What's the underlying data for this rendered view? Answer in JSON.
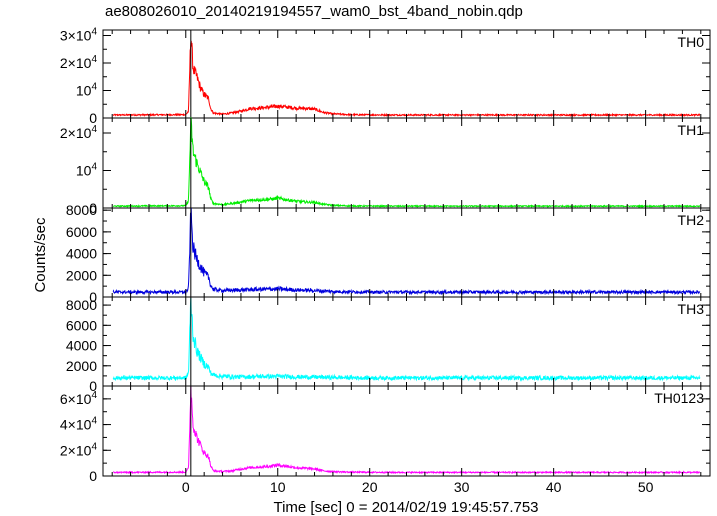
{
  "title": "ae808026010_20140219194557_wam0_bst_4band_nobin.qdp",
  "xlabel": "Time [sec] 0 = 2014/02/19 19:45:57.753",
  "ylabel": "Counts/sec",
  "chart_data": {
    "type": "line",
    "title": "ae808026010_20140219194557_wam0_bst_4band_nobin.qdp",
    "xlabel": "Time [sec] 0 = 2014/02/19 19:45:57.753",
    "ylabel": "Counts/sec",
    "xlim": [
      -9,
      57
    ],
    "x_ticks": [
      "0",
      "10",
      "20",
      "30",
      "40",
      "50"
    ],
    "x_data_range": [
      -7.9,
      55.9
    ],
    "trigger_time": 0.55,
    "grid": false,
    "series": [
      {
        "name": "TH0",
        "color": "#ff0000",
        "ylim": [
          0,
          32000
        ],
        "ytick_labels": [
          {
            "value": 0,
            "label": "0",
            "sup": ""
          },
          {
            "value": 10000,
            "label": "10",
            "sup": "4"
          },
          {
            "value": 20000,
            "label": "2×10",
            "sup": "4"
          },
          {
            "value": 30000,
            "label": "3×10",
            "sup": "4"
          }
        ],
        "baseline": 1100,
        "points": [
          [
            -7.9,
            1100
          ],
          [
            0,
            1200
          ],
          [
            0.3,
            2500
          ],
          [
            0.55,
            31000
          ],
          [
            0.8,
            18000
          ],
          [
            1.2,
            15000
          ],
          [
            1.6,
            11000
          ],
          [
            2.0,
            8500
          ],
          [
            2.5,
            7000
          ],
          [
            2.7,
            3500
          ],
          [
            3.0,
            1800
          ],
          [
            4.0,
            1400
          ],
          [
            5.0,
            1800
          ],
          [
            6.0,
            2500
          ],
          [
            7.0,
            3500
          ],
          [
            8.0,
            3600
          ],
          [
            9.0,
            3900
          ],
          [
            10.0,
            4300
          ],
          [
            11.0,
            4000
          ],
          [
            12.0,
            3600
          ],
          [
            13.0,
            3500
          ],
          [
            14.0,
            3200
          ],
          [
            15.0,
            2000
          ],
          [
            16.0,
            1500
          ],
          [
            18.0,
            1200
          ],
          [
            22.0,
            1100
          ],
          [
            55.9,
            1100
          ]
        ]
      },
      {
        "name": "TH1",
        "color": "#00ee00",
        "ylim": [
          0,
          24000
        ],
        "ytick_labels": [
          {
            "value": 0,
            "label": "0",
            "sup": ""
          },
          {
            "value": 10000,
            "label": "10",
            "sup": "4"
          },
          {
            "value": 20000,
            "label": "2×10",
            "sup": "4"
          }
        ],
        "baseline": 500,
        "points": [
          [
            -7.9,
            500
          ],
          [
            0,
            600
          ],
          [
            0.3,
            2000
          ],
          [
            0.55,
            23000
          ],
          [
            0.8,
            15000
          ],
          [
            1.2,
            12000
          ],
          [
            1.6,
            9500
          ],
          [
            2.0,
            7000
          ],
          [
            2.5,
            5500
          ],
          [
            2.7,
            2500
          ],
          [
            3.0,
            1200
          ],
          [
            4.0,
            900
          ],
          [
            5.0,
            1200
          ],
          [
            6.0,
            1600
          ],
          [
            7.0,
            2000
          ],
          [
            8.0,
            2200
          ],
          [
            9.0,
            2300
          ],
          [
            10.0,
            2600
          ],
          [
            11.0,
            2200
          ],
          [
            12.0,
            1800
          ],
          [
            13.0,
            1600
          ],
          [
            14.0,
            1500
          ],
          [
            15.0,
            1000
          ],
          [
            16.0,
            700
          ],
          [
            18.0,
            550
          ],
          [
            22.0,
            500
          ],
          [
            55.9,
            500
          ]
        ]
      },
      {
        "name": "TH2",
        "color": "#0000dd",
        "ylim": [
          0,
          8200
        ],
        "ytick_labels": [
          {
            "value": 0,
            "label": "0",
            "sup": ""
          },
          {
            "value": 2000,
            "label": "2000",
            "sup": ""
          },
          {
            "value": 4000,
            "label": "4000",
            "sup": ""
          },
          {
            "value": 6000,
            "label": "6000",
            "sup": ""
          },
          {
            "value": 8000,
            "label": "8000",
            "sup": ""
          }
        ],
        "baseline": 450,
        "points": [
          [
            -7.9,
            450
          ],
          [
            0,
            450
          ],
          [
            0.3,
            800
          ],
          [
            0.55,
            7800
          ],
          [
            0.8,
            4500
          ],
          [
            1.2,
            3500
          ],
          [
            1.6,
            2800
          ],
          [
            2.0,
            2200
          ],
          [
            2.5,
            1800
          ],
          [
            2.7,
            1100
          ],
          [
            3.0,
            700
          ],
          [
            4.0,
            600
          ],
          [
            6.0,
            650
          ],
          [
            8.0,
            700
          ],
          [
            10.0,
            750
          ],
          [
            12.0,
            650
          ],
          [
            14.0,
            600
          ],
          [
            16.0,
            500
          ],
          [
            20.0,
            450
          ],
          [
            55.9,
            450
          ]
        ]
      },
      {
        "name": "TH3",
        "color": "#00ffff",
        "ylim": [
          0,
          8800
        ],
        "ytick_labels": [
          {
            "value": 0,
            "label": "0",
            "sup": ""
          },
          {
            "value": 2000,
            "label": "2000",
            "sup": ""
          },
          {
            "value": 4000,
            "label": "4000",
            "sup": ""
          },
          {
            "value": 6000,
            "label": "6000",
            "sup": ""
          },
          {
            "value": 8000,
            "label": "8000",
            "sup": ""
          }
        ],
        "baseline": 800,
        "points": [
          [
            -7.9,
            800
          ],
          [
            0,
            800
          ],
          [
            0.3,
            1300
          ],
          [
            0.55,
            8500
          ],
          [
            0.8,
            5000
          ],
          [
            1.2,
            3500
          ],
          [
            1.6,
            2800
          ],
          [
            2.0,
            2200
          ],
          [
            2.5,
            1800
          ],
          [
            2.7,
            1300
          ],
          [
            3.0,
            1100
          ],
          [
            4.0,
            950
          ],
          [
            6.0,
            900
          ],
          [
            8.0,
            950
          ],
          [
            10.0,
            950
          ],
          [
            12.0,
            900
          ],
          [
            14.0,
            880
          ],
          [
            16.0,
            850
          ],
          [
            20.0,
            800
          ],
          [
            55.9,
            800
          ]
        ]
      },
      {
        "name": "TH0123",
        "color": "#ff00ff",
        "ylim": [
          0,
          70000
        ],
        "ytick_labels": [
          {
            "value": 0,
            "label": "0",
            "sup": ""
          },
          {
            "value": 20000,
            "label": "2×10",
            "sup": "4"
          },
          {
            "value": 40000,
            "label": "4×10",
            "sup": "4"
          },
          {
            "value": 60000,
            "label": "6×10",
            "sup": "4"
          }
        ],
        "baseline": 2800,
        "points": [
          [
            -7.9,
            2800
          ],
          [
            0,
            3000
          ],
          [
            0.3,
            6000
          ],
          [
            0.55,
            68000
          ],
          [
            0.8,
            40000
          ],
          [
            1.2,
            30000
          ],
          [
            1.6,
            24000
          ],
          [
            2.0,
            18000
          ],
          [
            2.5,
            15000
          ],
          [
            2.7,
            8000
          ],
          [
            3.0,
            4000
          ],
          [
            4.0,
            3500
          ],
          [
            5.0,
            4000
          ],
          [
            6.0,
            5500
          ],
          [
            7.0,
            6500
          ],
          [
            8.0,
            7000
          ],
          [
            9.0,
            7500
          ],
          [
            10.0,
            8500
          ],
          [
            11.0,
            7500
          ],
          [
            12.0,
            6500
          ],
          [
            13.0,
            6000
          ],
          [
            14.0,
            5500
          ],
          [
            15.0,
            4000
          ],
          [
            16.0,
            3400
          ],
          [
            18.0,
            3000
          ],
          [
            22.0,
            2800
          ],
          [
            55.9,
            2800
          ]
        ]
      }
    ]
  }
}
